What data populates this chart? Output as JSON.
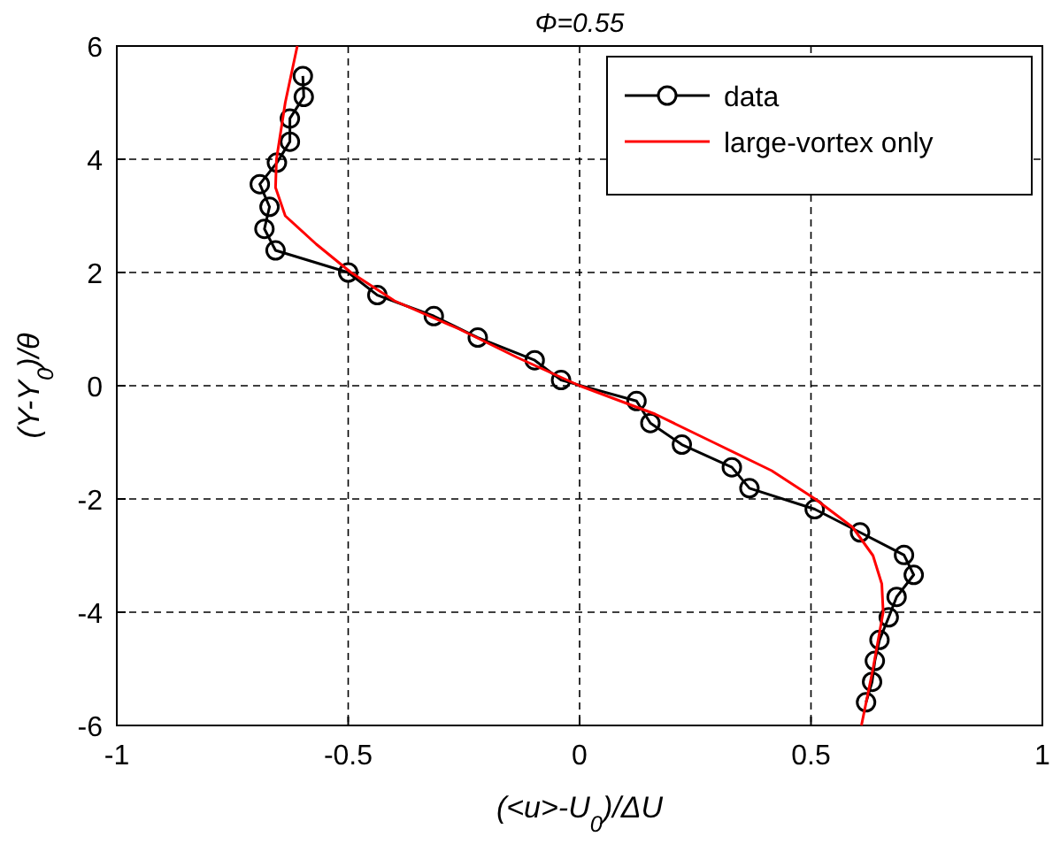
{
  "chart_data": {
    "type": "line",
    "title": "Φ=0.55",
    "xlabel": "(<u>-U$_{0}$)/ΔU",
    "ylabel": "(Y-Y$_{0}$)/θ",
    "xlim": [
      -1,
      1
    ],
    "xticks": [
      -1,
      -0.5,
      0,
      0.5,
      1
    ],
    "ylim": [
      -6,
      6
    ],
    "yticks": [
      -6,
      -4,
      -2,
      0,
      2,
      4,
      6
    ],
    "grid": true,
    "legend": "top right",
    "series": [
      {
        "name": "data",
        "color": "#000000",
        "marker": "circle",
        "x": [
          -0.598,
          -0.596,
          -0.626,
          -0.626,
          -0.654,
          -0.691,
          -0.67,
          -0.681,
          -0.657,
          -0.5,
          -0.437,
          -0.315,
          -0.22,
          -0.097,
          -0.04,
          0.123,
          0.153,
          0.221,
          0.329,
          0.367,
          0.508,
          0.606,
          0.701,
          0.722,
          0.685,
          0.668,
          0.648,
          0.638,
          0.632,
          0.619
        ],
        "values": [
          5.47,
          5.1,
          4.72,
          4.31,
          3.94,
          3.56,
          3.16,
          2.77,
          2.39,
          2.0,
          1.6,
          1.23,
          0.85,
          0.45,
          0.1,
          -0.27,
          -0.66,
          -1.04,
          -1.44,
          -1.81,
          -2.18,
          -2.59,
          -2.99,
          -3.34,
          -3.73,
          -4.09,
          -4.49,
          -4.86,
          -5.23,
          -5.59
        ]
      },
      {
        "name": "large-vortex only",
        "color": "#ff0000",
        "marker": "none",
        "x": [
          -0.61,
          -0.636,
          -0.655,
          -0.657,
          -0.636,
          -0.569,
          -0.494,
          -0.4,
          -0.26,
          -0.135,
          0.0,
          0.163,
          0.289,
          0.415,
          0.509,
          0.59,
          0.634,
          0.653,
          0.656,
          0.634,
          0.609
        ],
        "values": [
          6,
          5,
          4,
          3.5,
          3,
          2.5,
          2,
          1.5,
          1,
          0.5,
          0,
          -0.5,
          -1,
          -1.5,
          -2,
          -2.5,
          -3,
          -3.5,
          -4,
          -5,
          -6
        ]
      }
    ]
  }
}
